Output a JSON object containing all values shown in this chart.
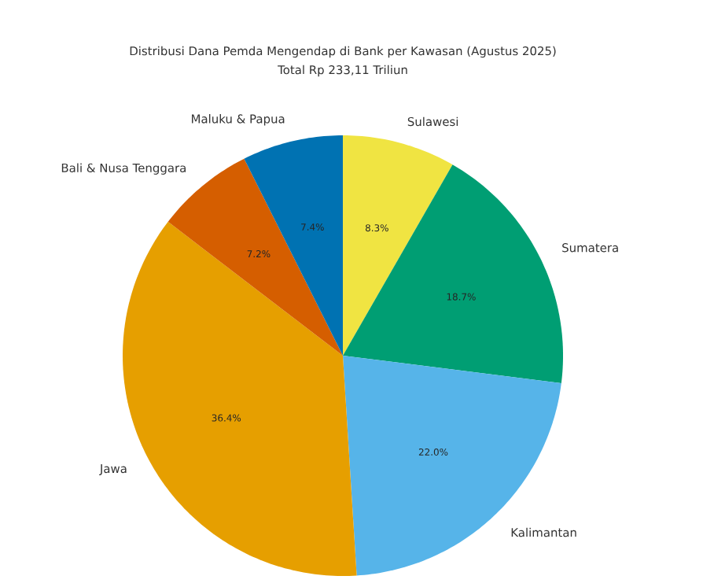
{
  "chart_data": {
    "type": "pie",
    "title": "Distribusi Dana Pemda Mengendap di Bank per Kawasan (Agustus 2025)",
    "subtitle": "Total Rp 233,11 Triliun",
    "categories": [
      "Sulawesi",
      "Sumatera",
      "Kalimantan",
      "Jawa",
      "Bali & Nusa Tenggara",
      "Maluku & Papua"
    ],
    "values": [
      8.3,
      18.7,
      22.0,
      36.4,
      7.2,
      7.4
    ],
    "colors": [
      "#f0e442",
      "#009e73",
      "#56b4e9",
      "#e69f00",
      "#d55e00",
      "#0072b2"
    ],
    "value_labels": [
      "8.3%",
      "18.7%",
      "22.0%",
      "36.4%",
      "7.2%",
      "7.4%"
    ]
  }
}
